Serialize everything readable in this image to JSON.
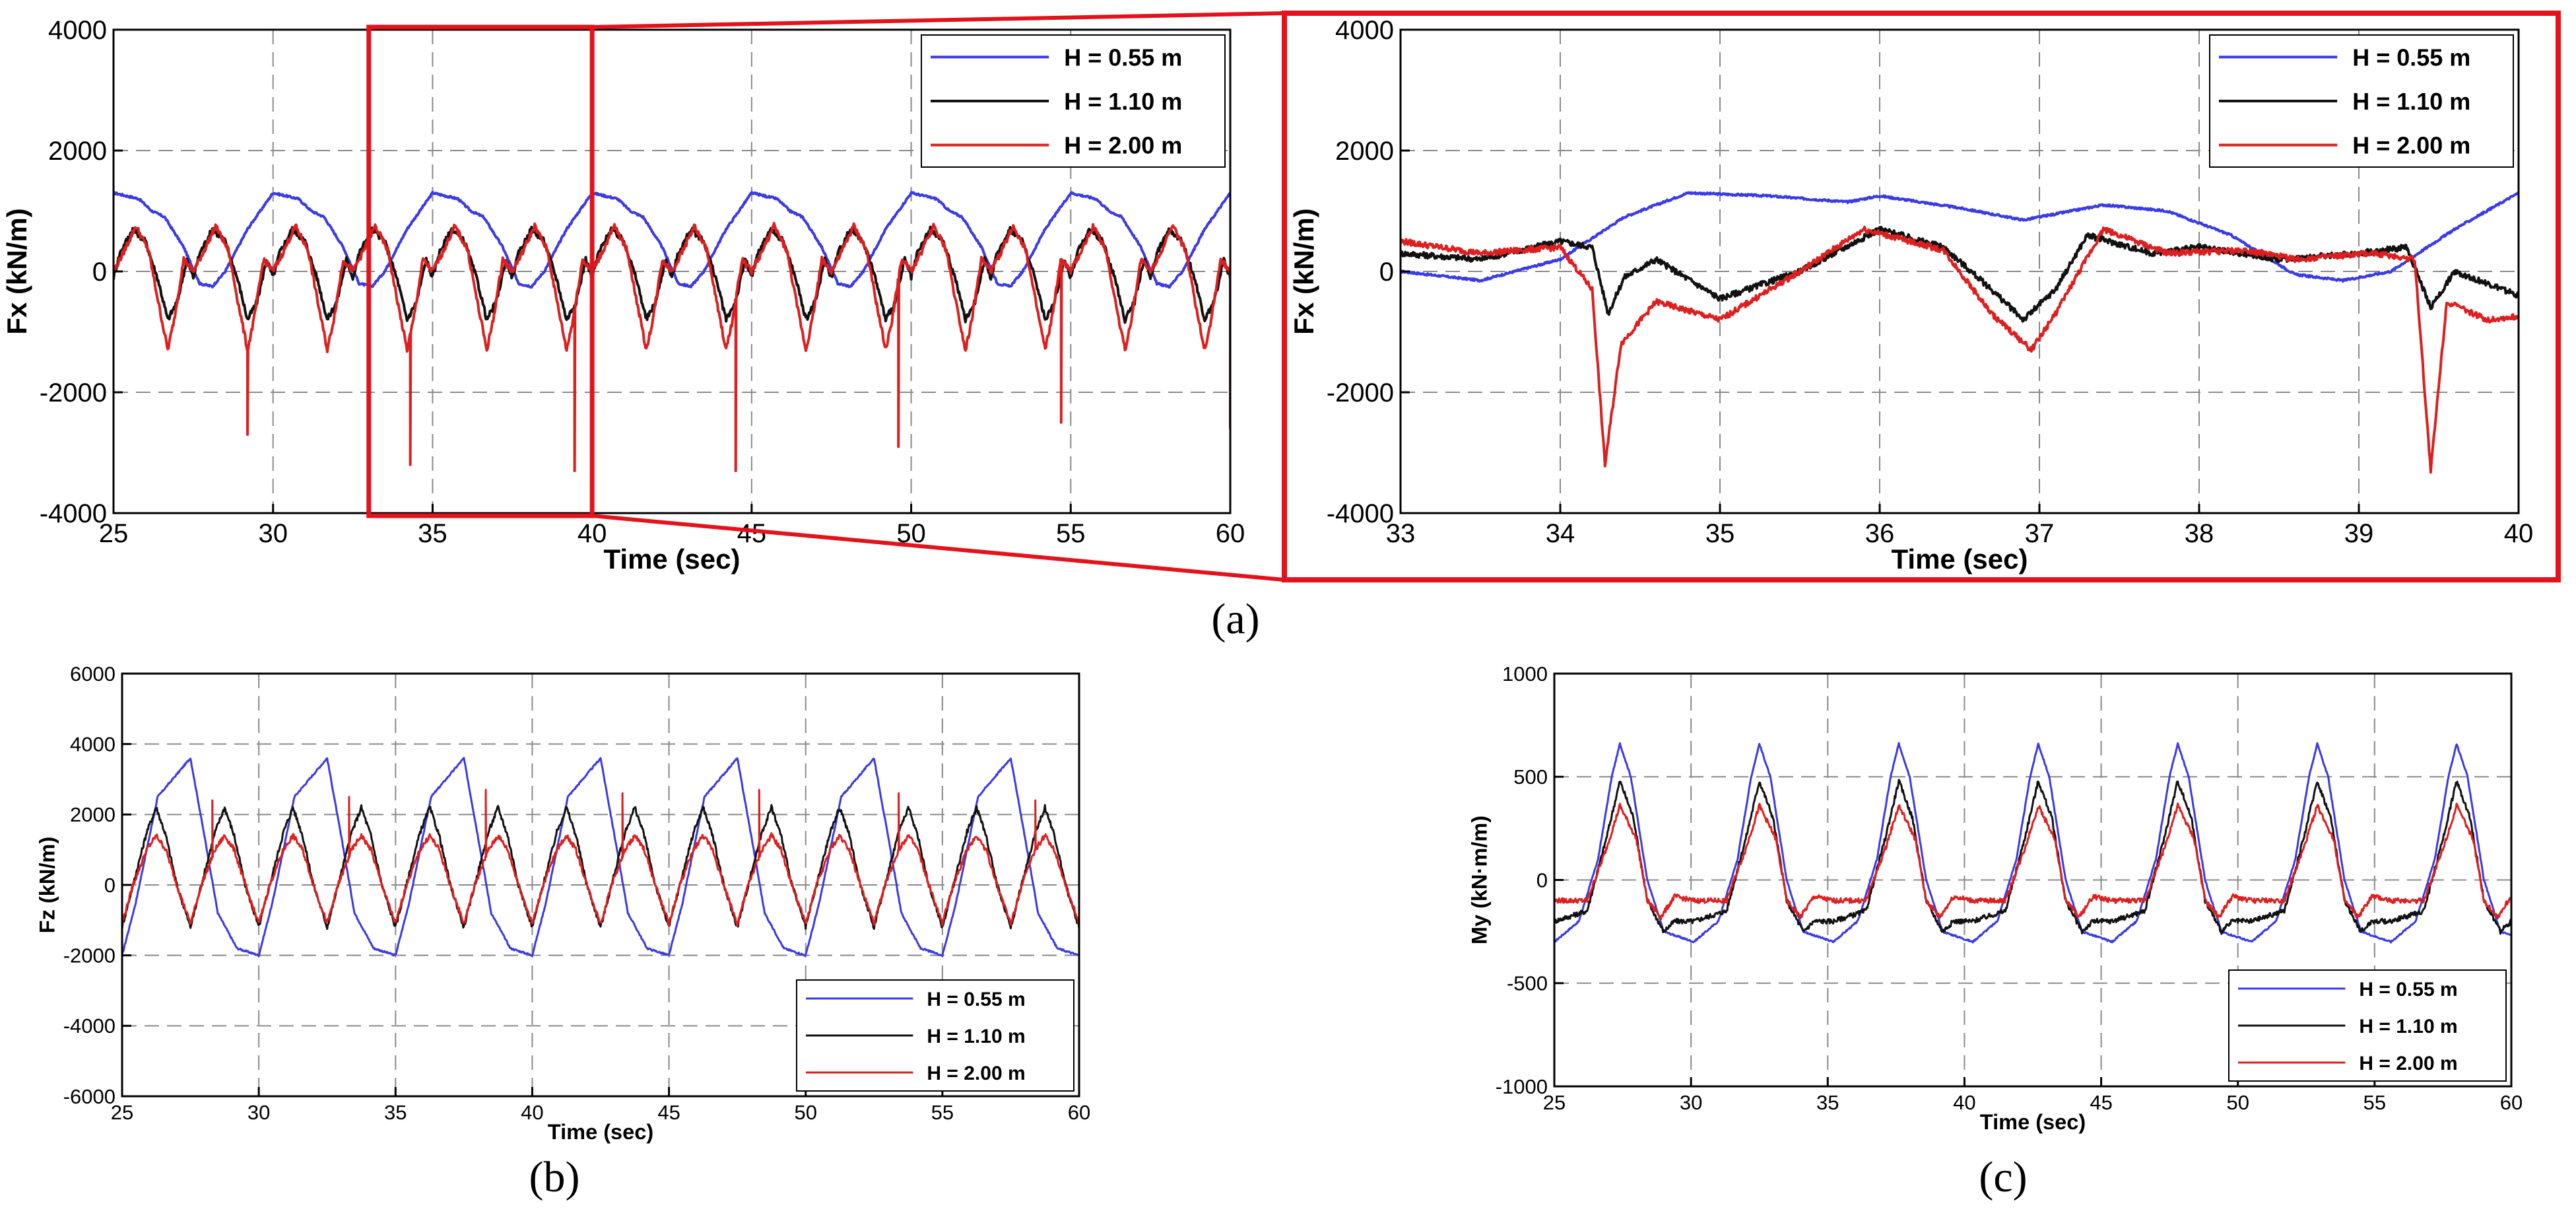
{
  "colors": {
    "blue": "#3a3ae6",
    "black": "#111111",
    "red": "#dd1f1f",
    "box": "#e3121b",
    "grid": "#8a8a8a"
  },
  "labels": {
    "a": "(a)",
    "b": "(b)",
    "c": "(c)"
  },
  "chart_data": [
    {
      "id": "a_left",
      "type": "line",
      "title": "",
      "xlabel": "Time (sec)",
      "ylabel": "Fx (kN/m)",
      "xlim": [
        25,
        60
      ],
      "ylim": [
        -4000,
        4000
      ],
      "xticks": [
        25,
        30,
        35,
        40,
        45,
        50,
        55,
        60
      ],
      "yticks": [
        -4000,
        -2000,
        0,
        2000,
        4000
      ],
      "grid": true,
      "legend_position": "top-right",
      "zoom_window": [
        33,
        40
      ],
      "series": [
        {
          "name": "H = 0.55 m",
          "color": "blue",
          "period": 5.0,
          "phase": 25,
          "points": [
            [
              0,
              1300
            ],
            [
              0.8,
              1200
            ],
            [
              1.2,
              1000
            ],
            [
              1.6,
              900
            ],
            [
              2.2,
              400
            ],
            [
              2.7,
              -200
            ],
            [
              3.1,
              -250
            ],
            [
              3.5,
              0
            ],
            [
              4.2,
              700
            ],
            [
              5.0,
              1300
            ]
          ]
        },
        {
          "name": "H = 1.10 m",
          "color": "black",
          "period": 2.5,
          "phase": 25,
          "points": [
            [
              0,
              -100
            ],
            [
              0.2,
              300
            ],
            [
              0.6,
              700
            ],
            [
              1.0,
              500
            ],
            [
              1.4,
              -150
            ],
            [
              1.7,
              -800
            ],
            [
              2.0,
              -500
            ],
            [
              2.3,
              200
            ],
            [
              2.5,
              -100
            ]
          ]
        },
        {
          "name": "H = 2.00 m",
          "color": "red",
          "period": 2.5,
          "phase": 25,
          "points": [
            [
              0,
              0
            ],
            [
              0.3,
              300
            ],
            [
              0.7,
              750
            ],
            [
              1.1,
              350
            ],
            [
              1.4,
              -500
            ],
            [
              1.7,
              -1300
            ],
            [
              1.9,
              -800
            ],
            [
              2.2,
              200
            ],
            [
              2.5,
              0
            ]
          ],
          "spikes": [
            [
              29.2,
              -2700
            ],
            [
              34.3,
              -3200
            ],
            [
              39.45,
              -3300
            ],
            [
              44.5,
              -3300
            ],
            [
              49.6,
              -2900
            ],
            [
              54.7,
              -2500
            ],
            [
              60.0,
              -2600
            ]
          ]
        }
      ]
    },
    {
      "id": "a_right",
      "type": "line",
      "title": "",
      "xlabel": "Time (sec)",
      "ylabel": "Fx (kN/m)",
      "xlim": [
        33,
        40
      ],
      "ylim": [
        -4000,
        4000
      ],
      "xticks": [
        33,
        34,
        35,
        36,
        37,
        38,
        39,
        40
      ],
      "yticks": [
        -4000,
        -2000,
        0,
        2000,
        4000
      ],
      "grid": true,
      "legend_position": "top-right",
      "series": [
        {
          "name": "H = 0.55 m",
          "color": "blue",
          "points": [
            [
              33,
              0
            ],
            [
              33.5,
              -150
            ],
            [
              34,
              200
            ],
            [
              34.4,
              900
            ],
            [
              34.8,
              1300
            ],
            [
              35.3,
              1250
            ],
            [
              35.8,
              1150
            ],
            [
              36,
              1250
            ],
            [
              36.5,
              1050
            ],
            [
              36.9,
              850
            ],
            [
              37.4,
              1100
            ],
            [
              37.8,
              1000
            ],
            [
              38.2,
              600
            ],
            [
              38.6,
              -50
            ],
            [
              38.9,
              -150
            ],
            [
              39.2,
              0
            ],
            [
              39.6,
              700
            ],
            [
              40,
              1300
            ]
          ]
        },
        {
          "name": "H = 1.10 m",
          "color": "black",
          "points": [
            [
              33,
              300
            ],
            [
              33.5,
              200
            ],
            [
              34,
              500
            ],
            [
              34.2,
              400
            ],
            [
              34.3,
              -700
            ],
            [
              34.4,
              -100
            ],
            [
              34.6,
              200
            ],
            [
              35,
              -450
            ],
            [
              35.5,
              0
            ],
            [
              36,
              700
            ],
            [
              36.4,
              400
            ],
            [
              36.7,
              -300
            ],
            [
              36.9,
              -800
            ],
            [
              37.1,
              -300
            ],
            [
              37.3,
              600
            ],
            [
              37.7,
              300
            ],
            [
              38,
              400
            ],
            [
              38.5,
              200
            ],
            [
              39,
              300
            ],
            [
              39.3,
              400
            ],
            [
              39.45,
              -600
            ],
            [
              39.6,
              0
            ],
            [
              40,
              -400
            ]
          ]
        },
        {
          "name": "H = 2.00 m",
          "color": "red",
          "points": [
            [
              33,
              500
            ],
            [
              33.5,
              300
            ],
            [
              34,
              400
            ],
            [
              34.2,
              -300
            ],
            [
              34.28,
              -3200
            ],
            [
              34.38,
              -1200
            ],
            [
              34.6,
              -500
            ],
            [
              35,
              -800
            ],
            [
              35.5,
              0
            ],
            [
              35.9,
              700
            ],
            [
              36.4,
              350
            ],
            [
              36.7,
              -700
            ],
            [
              36.95,
              -1300
            ],
            [
              37.1,
              -700
            ],
            [
              37.4,
              700
            ],
            [
              37.8,
              300
            ],
            [
              38.3,
              350
            ],
            [
              38.6,
              200
            ],
            [
              39.1,
              300
            ],
            [
              39.35,
              200
            ],
            [
              39.45,
              -3300
            ],
            [
              39.55,
              -500
            ],
            [
              39.8,
              -800
            ],
            [
              40,
              -750
            ]
          ]
        }
      ]
    },
    {
      "id": "b",
      "type": "line",
      "title": "",
      "xlabel": "Time (sec)",
      "ylabel": "Fz (kN/m)",
      "xlim": [
        25,
        60
      ],
      "ylim": [
        -6000,
        6000
      ],
      "xticks": [
        25,
        30,
        35,
        40,
        45,
        50,
        55,
        60
      ],
      "yticks": [
        -6000,
        -4000,
        -2000,
        0,
        2000,
        4000,
        6000
      ],
      "grid": true,
      "legend_position": "bottom-right",
      "series": [
        {
          "name": "H = 0.55 m",
          "color": "blue",
          "period": 5.0,
          "phase": 25,
          "points": [
            [
              0,
              -2000
            ],
            [
              0.5,
              -500
            ],
            [
              1.3,
              2500
            ],
            [
              2.5,
              3600
            ],
            [
              3.1,
              1000
            ],
            [
              3.5,
              -800
            ],
            [
              4.2,
              -1800
            ],
            [
              5.0,
              -2000
            ]
          ]
        },
        {
          "name": "H = 1.10 m",
          "color": "black",
          "period": 2.5,
          "phase": 25,
          "points": [
            [
              0,
              -1200
            ],
            [
              0.4,
              0
            ],
            [
              0.9,
              1500
            ],
            [
              1.25,
              2200
            ],
            [
              1.6,
              1400
            ],
            [
              2.0,
              0
            ],
            [
              2.5,
              -1200
            ]
          ]
        },
        {
          "name": "H = 2.00 m",
          "color": "red",
          "period": 2.5,
          "phase": 25,
          "points": [
            [
              0,
              -1100
            ],
            [
              0.4,
              0
            ],
            [
              0.9,
              1000
            ],
            [
              1.25,
              1400
            ],
            [
              1.6,
              1000
            ],
            [
              2.0,
              0
            ],
            [
              2.5,
              -1100
            ]
          ],
          "spikes": [
            [
              28.3,
              2400
            ],
            [
              33.3,
              2500
            ],
            [
              38.3,
              2700
            ],
            [
              43.3,
              2600
            ],
            [
              48.3,
              2700
            ],
            [
              53.4,
              2600
            ],
            [
              58.4,
              2400
            ]
          ]
        }
      ]
    },
    {
      "id": "c",
      "type": "line",
      "title": "",
      "xlabel": "Time (sec)",
      "ylabel": "My (kN·m/m)",
      "xlim": [
        25,
        60
      ],
      "ylim": [
        -1000,
        1000
      ],
      "xticks": [
        25,
        30,
        35,
        40,
        45,
        50,
        55,
        60
      ],
      "yticks": [
        -1000,
        -500,
        0,
        500,
        1000
      ],
      "grid": true,
      "legend_position": "bottom-right",
      "series": [
        {
          "name": "H = 0.55 m",
          "color": "blue",
          "period": 5.1,
          "phase": 27.4,
          "points": [
            [
              -2.4,
              -300
            ],
            [
              -1.5,
              -200
            ],
            [
              -0.8,
              100
            ],
            [
              -0.3,
              500
            ],
            [
              0,
              660
            ],
            [
              0.4,
              500
            ],
            [
              1.0,
              0
            ],
            [
              1.6,
              -250
            ],
            [
              2.7,
              -300
            ]
          ]
        },
        {
          "name": "H = 1.10 m",
          "color": "black",
          "period": 5.1,
          "phase": 27.4,
          "points": [
            [
              -2.4,
              -200
            ],
            [
              -1.2,
              -150
            ],
            [
              -0.5,
              200
            ],
            [
              0,
              480
            ],
            [
              0.5,
              300
            ],
            [
              1.0,
              -100
            ],
            [
              1.6,
              -250
            ],
            [
              2.0,
              -200
            ],
            [
              2.7,
              -200
            ]
          ]
        },
        {
          "name": "H = 2.00 m",
          "color": "red",
          "period": 5.1,
          "phase": 27.4,
          "points": [
            [
              -2.4,
              -100
            ],
            [
              -1.2,
              -100
            ],
            [
              -0.5,
              150
            ],
            [
              0,
              360
            ],
            [
              0.6,
              200
            ],
            [
              1.0,
              -100
            ],
            [
              1.5,
              -180
            ],
            [
              2.0,
              -80
            ],
            [
              2.7,
              -100
            ]
          ]
        }
      ]
    }
  ]
}
